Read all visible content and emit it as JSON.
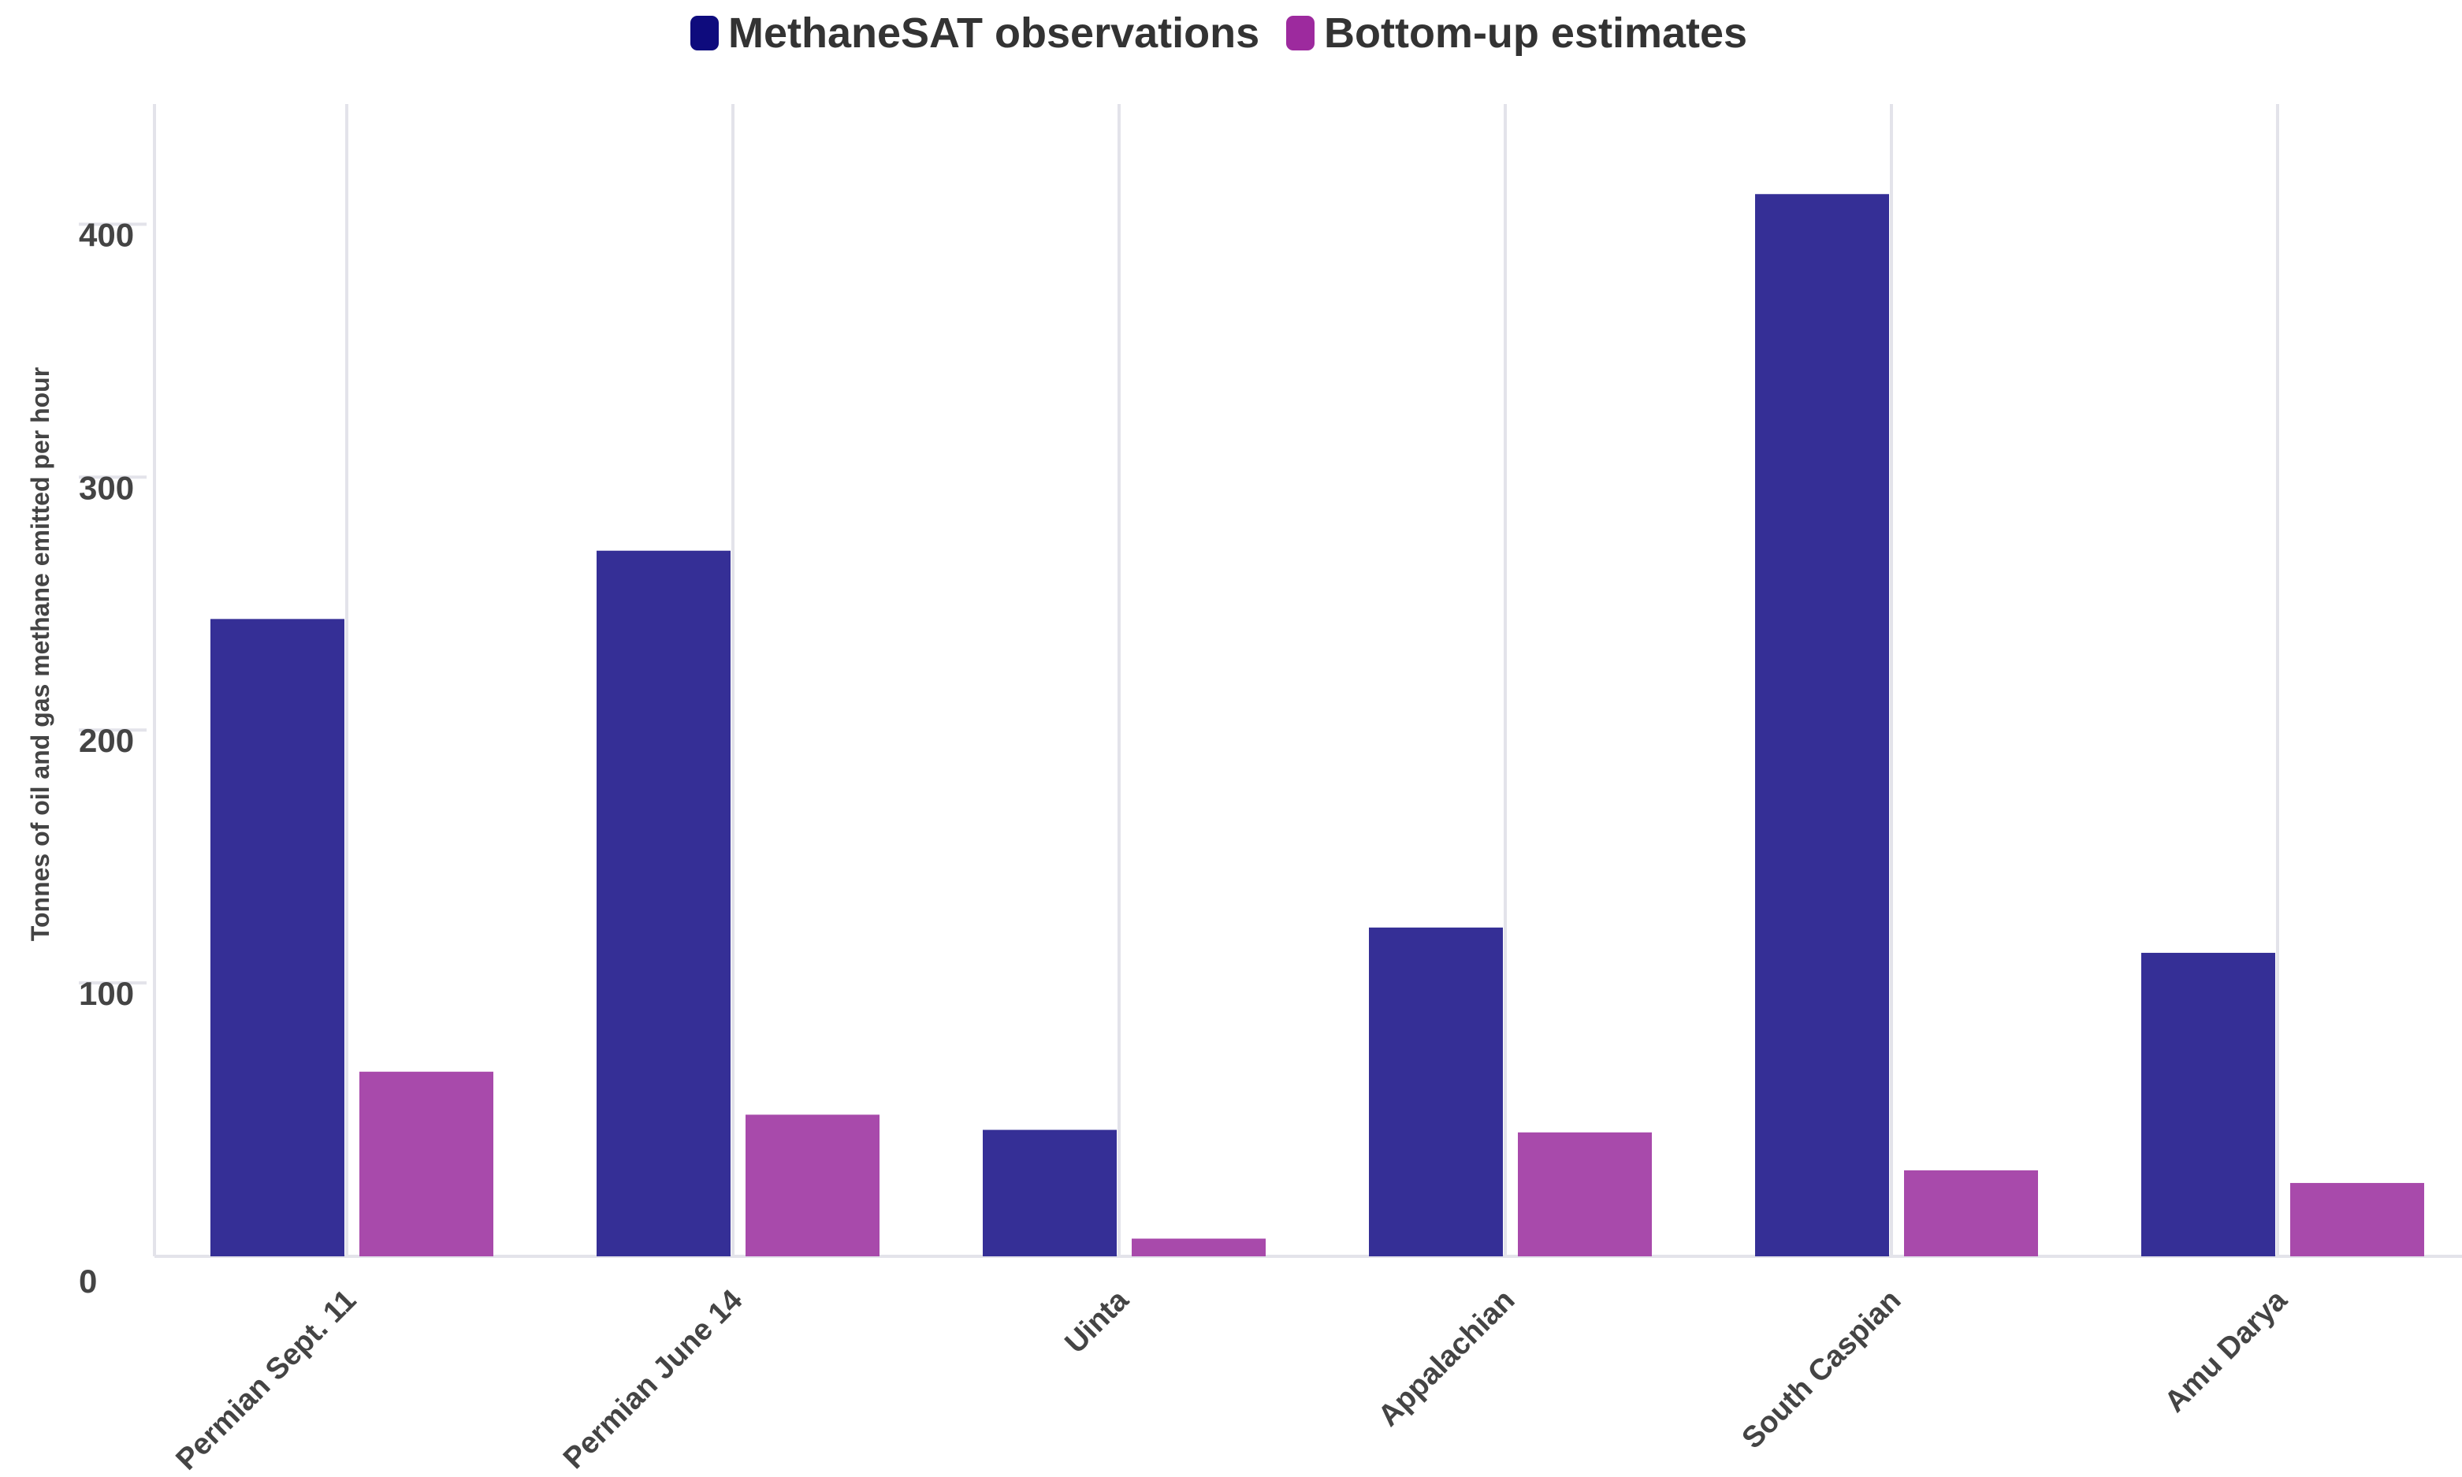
{
  "chart_data": {
    "type": "bar",
    "title": "",
    "xlabel": "",
    "ylabel": "Tonnes of oil and gas methane emitted per hour",
    "categories": [
      "Permian Sept. 11",
      "Permian June 14",
      "Uinta",
      "Appalachian",
      "South Caspian",
      "Amu Darya"
    ],
    "series": [
      {
        "name": "MethaneSAT observations",
        "color": "#352f96",
        "legend_color": "#0e0b7d",
        "values": [
          252,
          279,
          50,
          130,
          420,
          120
        ]
      },
      {
        "name": "Bottom-up estimates",
        "color": "#a84aab",
        "legend_color": "#9d2a9e",
        "values": [
          73,
          56,
          7,
          49,
          34,
          29
        ]
      }
    ],
    "yticks": [
      0,
      100,
      200,
      300,
      400
    ],
    "ylim": [
      0,
      450
    ],
    "grid": "vertical",
    "legend_position": "top-center"
  }
}
